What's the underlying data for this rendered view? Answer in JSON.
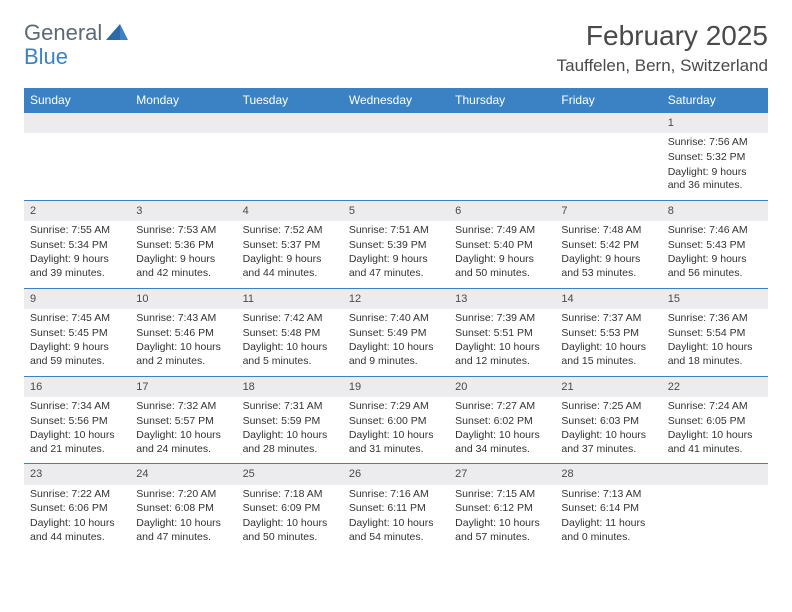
{
  "logo": {
    "word1": "General",
    "word2": "Blue"
  },
  "title": "February 2025",
  "location": "Tauffelen, Bern, Switzerland",
  "colors": {
    "header_bg": "#3b82c4",
    "header_text": "#ffffff",
    "daynum_bg": "#ececee",
    "border": "#3b82c4",
    "text": "#333333",
    "logo_gray": "#5a6a76",
    "logo_blue": "#3b82c4"
  },
  "weekdays": [
    "Sunday",
    "Monday",
    "Tuesday",
    "Wednesday",
    "Thursday",
    "Friday",
    "Saturday"
  ],
  "weeks": [
    [
      null,
      null,
      null,
      null,
      null,
      null,
      {
        "n": "1",
        "sunrise": "Sunrise: 7:56 AM",
        "sunset": "Sunset: 5:32 PM",
        "daylight": "Daylight: 9 hours and 36 minutes."
      }
    ],
    [
      {
        "n": "2",
        "sunrise": "Sunrise: 7:55 AM",
        "sunset": "Sunset: 5:34 PM",
        "daylight": "Daylight: 9 hours and 39 minutes."
      },
      {
        "n": "3",
        "sunrise": "Sunrise: 7:53 AM",
        "sunset": "Sunset: 5:36 PM",
        "daylight": "Daylight: 9 hours and 42 minutes."
      },
      {
        "n": "4",
        "sunrise": "Sunrise: 7:52 AM",
        "sunset": "Sunset: 5:37 PM",
        "daylight": "Daylight: 9 hours and 44 minutes."
      },
      {
        "n": "5",
        "sunrise": "Sunrise: 7:51 AM",
        "sunset": "Sunset: 5:39 PM",
        "daylight": "Daylight: 9 hours and 47 minutes."
      },
      {
        "n": "6",
        "sunrise": "Sunrise: 7:49 AM",
        "sunset": "Sunset: 5:40 PM",
        "daylight": "Daylight: 9 hours and 50 minutes."
      },
      {
        "n": "7",
        "sunrise": "Sunrise: 7:48 AM",
        "sunset": "Sunset: 5:42 PM",
        "daylight": "Daylight: 9 hours and 53 minutes."
      },
      {
        "n": "8",
        "sunrise": "Sunrise: 7:46 AM",
        "sunset": "Sunset: 5:43 PM",
        "daylight": "Daylight: 9 hours and 56 minutes."
      }
    ],
    [
      {
        "n": "9",
        "sunrise": "Sunrise: 7:45 AM",
        "sunset": "Sunset: 5:45 PM",
        "daylight": "Daylight: 9 hours and 59 minutes."
      },
      {
        "n": "10",
        "sunrise": "Sunrise: 7:43 AM",
        "sunset": "Sunset: 5:46 PM",
        "daylight": "Daylight: 10 hours and 2 minutes."
      },
      {
        "n": "11",
        "sunrise": "Sunrise: 7:42 AM",
        "sunset": "Sunset: 5:48 PM",
        "daylight": "Daylight: 10 hours and 5 minutes."
      },
      {
        "n": "12",
        "sunrise": "Sunrise: 7:40 AM",
        "sunset": "Sunset: 5:49 PM",
        "daylight": "Daylight: 10 hours and 9 minutes."
      },
      {
        "n": "13",
        "sunrise": "Sunrise: 7:39 AM",
        "sunset": "Sunset: 5:51 PM",
        "daylight": "Daylight: 10 hours and 12 minutes."
      },
      {
        "n": "14",
        "sunrise": "Sunrise: 7:37 AM",
        "sunset": "Sunset: 5:53 PM",
        "daylight": "Daylight: 10 hours and 15 minutes."
      },
      {
        "n": "15",
        "sunrise": "Sunrise: 7:36 AM",
        "sunset": "Sunset: 5:54 PM",
        "daylight": "Daylight: 10 hours and 18 minutes."
      }
    ],
    [
      {
        "n": "16",
        "sunrise": "Sunrise: 7:34 AM",
        "sunset": "Sunset: 5:56 PM",
        "daylight": "Daylight: 10 hours and 21 minutes."
      },
      {
        "n": "17",
        "sunrise": "Sunrise: 7:32 AM",
        "sunset": "Sunset: 5:57 PM",
        "daylight": "Daylight: 10 hours and 24 minutes."
      },
      {
        "n": "18",
        "sunrise": "Sunrise: 7:31 AM",
        "sunset": "Sunset: 5:59 PM",
        "daylight": "Daylight: 10 hours and 28 minutes."
      },
      {
        "n": "19",
        "sunrise": "Sunrise: 7:29 AM",
        "sunset": "Sunset: 6:00 PM",
        "daylight": "Daylight: 10 hours and 31 minutes."
      },
      {
        "n": "20",
        "sunrise": "Sunrise: 7:27 AM",
        "sunset": "Sunset: 6:02 PM",
        "daylight": "Daylight: 10 hours and 34 minutes."
      },
      {
        "n": "21",
        "sunrise": "Sunrise: 7:25 AM",
        "sunset": "Sunset: 6:03 PM",
        "daylight": "Daylight: 10 hours and 37 minutes."
      },
      {
        "n": "22",
        "sunrise": "Sunrise: 7:24 AM",
        "sunset": "Sunset: 6:05 PM",
        "daylight": "Daylight: 10 hours and 41 minutes."
      }
    ],
    [
      {
        "n": "23",
        "sunrise": "Sunrise: 7:22 AM",
        "sunset": "Sunset: 6:06 PM",
        "daylight": "Daylight: 10 hours and 44 minutes."
      },
      {
        "n": "24",
        "sunrise": "Sunrise: 7:20 AM",
        "sunset": "Sunset: 6:08 PM",
        "daylight": "Daylight: 10 hours and 47 minutes."
      },
      {
        "n": "25",
        "sunrise": "Sunrise: 7:18 AM",
        "sunset": "Sunset: 6:09 PM",
        "daylight": "Daylight: 10 hours and 50 minutes."
      },
      {
        "n": "26",
        "sunrise": "Sunrise: 7:16 AM",
        "sunset": "Sunset: 6:11 PM",
        "daylight": "Daylight: 10 hours and 54 minutes."
      },
      {
        "n": "27",
        "sunrise": "Sunrise: 7:15 AM",
        "sunset": "Sunset: 6:12 PM",
        "daylight": "Daylight: 10 hours and 57 minutes."
      },
      {
        "n": "28",
        "sunrise": "Sunrise: 7:13 AM",
        "sunset": "Sunset: 6:14 PM",
        "daylight": "Daylight: 11 hours and 0 minutes."
      },
      null
    ]
  ]
}
